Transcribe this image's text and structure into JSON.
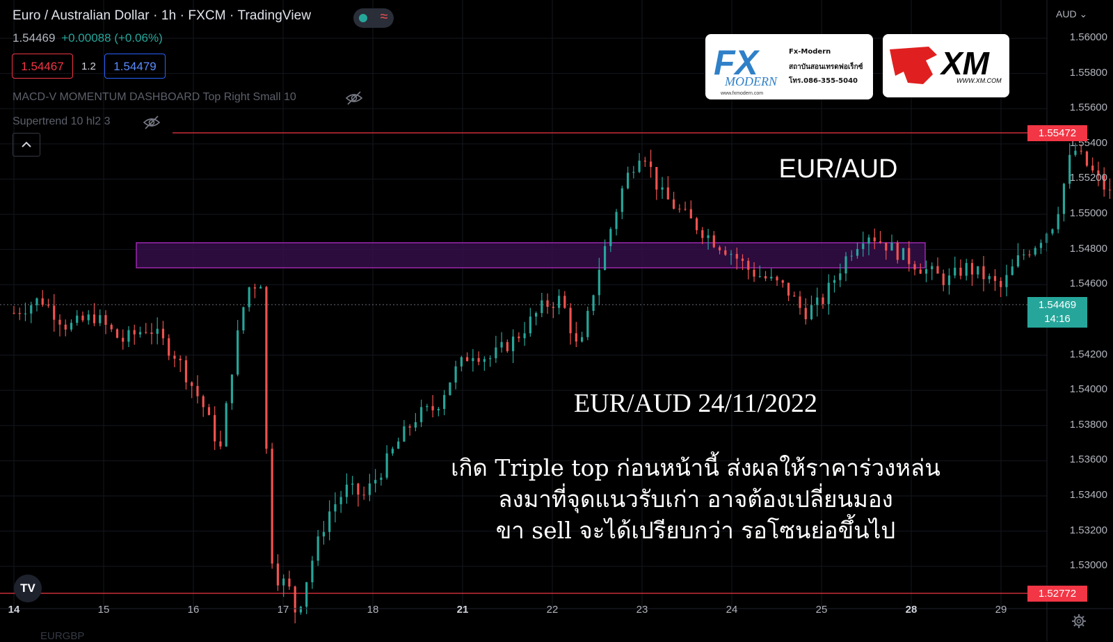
{
  "header": {
    "symbol_title": "Euro / Australian Dollar · 1h · FXCM · TradingView",
    "last_price": "1.54469",
    "change": "+0.00088 (+0.06%)",
    "sell_price": "1.54467",
    "spread": "1.2",
    "buy_price": "1.54479",
    "indicator_1": "MACD-V MOMENTUM DASHBOARD Top Right Small 10",
    "indicator_2": "Supertrend 10 hl2 3",
    "currency_menu": "AUD"
  },
  "logos": {
    "fx_modern": {
      "brand": "FX MODERN",
      "url": "www.fxmodern.com",
      "name": "Fx-Modern",
      "tagline": "สถาบันสอนเทรดฟอเร็กซ์",
      "phone": "โทร.086-355-5040"
    },
    "xm": {
      "brand": "XM",
      "url": "WWW.XM.COM"
    }
  },
  "overlay": {
    "pair": "EUR/AUD",
    "date_line": "EUR/AUD 24/11/2022",
    "note_line_1": "เกิด Triple top ก่อนหน้านี้ ส่งผลให้ราคาร่วงหล่น",
    "note_line_2": "ลงมาที่จุดแนวรับเก่า อาจต้องเปลี่ยนมอง",
    "note_line_3": "ขา sell จะได้เปรียบกว่า รอโซนย่อขึ้นไป"
  },
  "price_axis": {
    "labels": [
      "1.56000",
      "1.55800",
      "1.55600",
      "1.55400",
      "1.55200",
      "1.55000",
      "1.54800",
      "1.54600",
      "1.54200",
      "1.54000",
      "1.53800",
      "1.53600",
      "1.53400",
      "1.53200",
      "1.53000"
    ],
    "resistance_tag": "1.55472",
    "last_tag": "1.54469",
    "countdown": "14:16",
    "support_tag": "1.52772"
  },
  "time_axis": [
    "14",
    "15",
    "16",
    "17",
    "18",
    "21",
    "22",
    "23",
    "24",
    "25",
    "28",
    "29"
  ],
  "footer_symbol": "EURGBP",
  "colors": {
    "up": "#26a69a",
    "down": "#ef5350",
    "zone": "#9c27b0",
    "level_line": "#f23645",
    "background": "#000000"
  },
  "chart_data": {
    "type": "candlestick",
    "title": "Euro / Australian Dollar · 1h · FXCM · TradingView",
    "y_range": [
      1.5257,
      1.5617
    ],
    "x_categories": [
      "14",
      "15",
      "16",
      "17",
      "18",
      "21",
      "22",
      "23",
      "24",
      "25",
      "28",
      "29"
    ],
    "horizontal_levels": [
      1.55472,
      1.52772
    ],
    "last_price": 1.54469,
    "zone": {
      "from_x": "15",
      "to_x": "25",
      "low": 1.5469,
      "high": 1.5484
    },
    "close_path": [
      [
        0.0,
        1.5444
      ],
      [
        0.3,
        1.5452
      ],
      [
        0.6,
        1.5436
      ],
      [
        0.9,
        1.5442
      ],
      [
        1.2,
        1.5428
      ],
      [
        1.5,
        1.5436
      ],
      [
        1.8,
        1.542
      ],
      [
        2.1,
        1.5392
      ],
      [
        2.3,
        1.5366
      ],
      [
        2.45,
        1.542
      ],
      [
        2.6,
        1.5458
      ],
      [
        2.75,
        1.5462
      ],
      [
        2.85,
        1.531
      ],
      [
        2.95,
        1.5292
      ],
      [
        3.05,
        1.529
      ],
      [
        3.15,
        1.5272
      ],
      [
        3.3,
        1.53
      ],
      [
        3.5,
        1.533
      ],
      [
        3.7,
        1.5344
      ],
      [
        3.9,
        1.534
      ],
      [
        4.1,
        1.5355
      ],
      [
        4.3,
        1.5372
      ],
      [
        4.5,
        1.5386
      ],
      [
        4.7,
        1.539
      ],
      [
        4.9,
        1.541
      ],
      [
        5.1,
        1.5422
      ],
      [
        5.3,
        1.5418
      ],
      [
        5.6,
        1.543
      ],
      [
        5.9,
        1.5448
      ],
      [
        6.1,
        1.5452
      ],
      [
        6.3,
        1.542
      ],
      [
        6.5,
        1.5466
      ],
      [
        6.8,
        1.5518
      ],
      [
        7.0,
        1.5538
      ],
      [
        7.2,
        1.5512
      ],
      [
        7.5,
        1.5498
      ],
      [
        7.8,
        1.5485
      ],
      [
        8.0,
        1.5478
      ],
      [
        8.2,
        1.5468
      ],
      [
        8.4,
        1.5463
      ],
      [
        8.6,
        1.5458
      ],
      [
        8.8,
        1.5444
      ],
      [
        9.0,
        1.545
      ],
      [
        9.3,
        1.5478
      ],
      [
        9.5,
        1.549
      ],
      [
        9.8,
        1.548
      ],
      [
        10.1,
        1.547
      ],
      [
        10.4,
        1.5462
      ],
      [
        10.6,
        1.547
      ],
      [
        10.8,
        1.5465
      ],
      [
        11.0,
        1.5458
      ],
      [
        11.2,
        1.5475
      ],
      [
        11.4,
        1.5484
      ],
      [
        11.6,
        1.5496
      ],
      [
        11.8,
        1.5538
      ],
      [
        12.0,
        1.5525
      ],
      [
        12.2,
        1.5512
      ],
      [
        12.4,
        1.5505
      ],
      [
        12.7,
        1.5514
      ],
      [
        12.9,
        1.5518
      ],
      [
        13.1,
        1.5496
      ],
      [
        13.3,
        1.547
      ],
      [
        13.5,
        1.546
      ],
      [
        13.7,
        1.548
      ],
      [
        13.9,
        1.549
      ],
      [
        14.2,
        1.5498
      ],
      [
        14.5,
        1.5504
      ],
      [
        14.7,
        1.5506
      ],
      [
        14.9,
        1.5535
      ],
      [
        15.1,
        1.5545
      ],
      [
        15.3,
        1.5532
      ],
      [
        15.5,
        1.5506
      ],
      [
        15.65,
        1.552
      ],
      [
        15.8,
        1.5524
      ],
      [
        15.95,
        1.5478
      ],
      [
        16.1,
        1.544
      ],
      [
        16.3,
        1.545
      ],
      [
        16.5,
        1.544
      ],
      [
        16.7,
        1.5443
      ],
      [
        16.9,
        1.5438
      ],
      [
        17.1,
        1.5437
      ],
      [
        17.2,
        1.54469
      ]
    ],
    "x_units": "sessions (category ticks 14..29 at 0..11)"
  }
}
